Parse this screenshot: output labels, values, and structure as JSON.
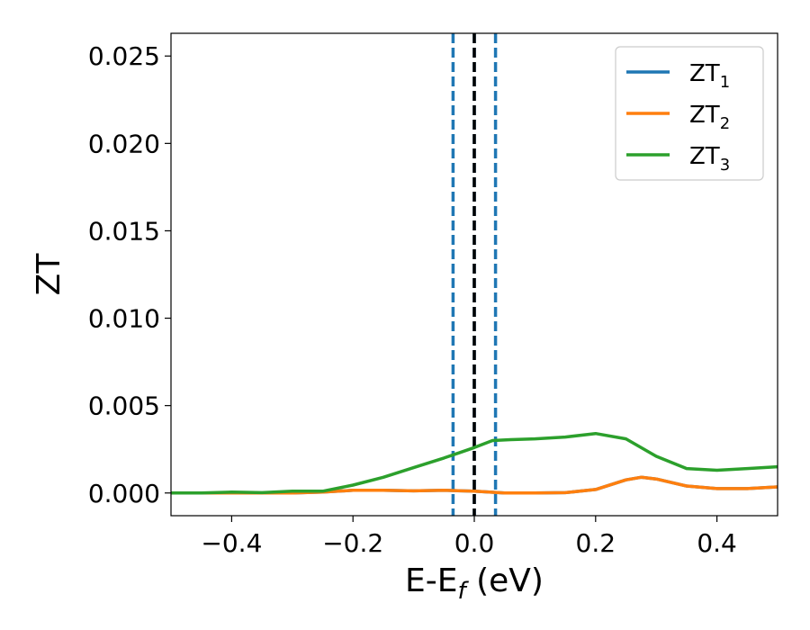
{
  "chart_data": {
    "type": "line",
    "title": "",
    "xlabel": {
      "main": "E-E",
      "sub": "f",
      "suffix": " (eV)"
    },
    "ylabel": "ZT",
    "xlim": [
      -0.5,
      0.5
    ],
    "ylim": [
      -0.0013,
      0.0263
    ],
    "xticks": [
      -0.4,
      -0.2,
      0.0,
      0.2,
      0.4
    ],
    "xtick_labels": [
      "−0.4",
      "−0.2",
      "0.0",
      "0.2",
      "0.4"
    ],
    "yticks": [
      0.0,
      0.005,
      0.01,
      0.015,
      0.02,
      0.025
    ],
    "ytick_labels": [
      "0.000",
      "0.005",
      "0.010",
      "0.015",
      "0.020",
      "0.025"
    ],
    "grid": false,
    "legend_position": "top-right",
    "vlines": [
      {
        "x": -0.035,
        "style": "dashed",
        "color": "#1f77b4"
      },
      {
        "x": 0.0,
        "style": "dashed",
        "color": "#1f77b4"
      },
      {
        "x": 0.035,
        "style": "dashed",
        "color": "#1f77b4"
      },
      {
        "x": 0.0,
        "style": "dashed",
        "color": "#000000"
      }
    ],
    "series": [
      {
        "name": "ZT",
        "name_sub": "1",
        "color": "#1f77b4",
        "x": [
          -0.5,
          -0.45,
          -0.4,
          -0.35,
          -0.3,
          -0.25,
          -0.2,
          -0.15,
          -0.1,
          -0.05,
          0.0,
          0.05,
          0.1,
          0.15,
          0.2,
          0.25,
          0.275,
          0.3,
          0.35,
          0.4,
          0.45,
          0.5
        ],
        "values": [
          0.0,
          0.0,
          0.0,
          0.0,
          0.0,
          5e-05,
          0.00015,
          0.00015,
          0.00012,
          0.00015,
          0.0001,
          0.0,
          0.0,
          2e-05,
          0.0002,
          0.00075,
          0.0009,
          0.0008,
          0.0004,
          0.00025,
          0.00025,
          0.00035
        ]
      },
      {
        "name": "ZT",
        "name_sub": "2",
        "color": "#ff7f0e",
        "x": [
          -0.5,
          -0.45,
          -0.4,
          -0.35,
          -0.3,
          -0.25,
          -0.2,
          -0.15,
          -0.1,
          -0.05,
          0.0,
          0.05,
          0.1,
          0.15,
          0.2,
          0.25,
          0.275,
          0.3,
          0.35,
          0.4,
          0.45,
          0.5
        ],
        "values": [
          0.0,
          0.0,
          0.0,
          0.0,
          0.0,
          5e-05,
          0.00015,
          0.00015,
          0.00012,
          0.00015,
          0.0001,
          0.0,
          0.0,
          2e-05,
          0.0002,
          0.00075,
          0.0009,
          0.0008,
          0.0004,
          0.00025,
          0.00025,
          0.00035
        ]
      },
      {
        "name": "ZT",
        "name_sub": "3",
        "color": "#2ca02c",
        "x": [
          -0.5,
          -0.45,
          -0.4,
          -0.35,
          -0.3,
          -0.25,
          -0.2,
          -0.15,
          -0.1,
          -0.05,
          0.0,
          0.03,
          0.06,
          0.1,
          0.15,
          0.2,
          0.25,
          0.3,
          0.35,
          0.4,
          0.45,
          0.5
        ],
        "values": [
          0.0,
          0.0,
          5e-05,
          2e-05,
          0.0001,
          0.0001,
          0.00045,
          0.0009,
          0.00145,
          0.002,
          0.0026,
          0.003,
          0.00305,
          0.0031,
          0.0032,
          0.0034,
          0.0031,
          0.0021,
          0.0014,
          0.0013,
          0.0014,
          0.0015
        ]
      }
    ]
  }
}
